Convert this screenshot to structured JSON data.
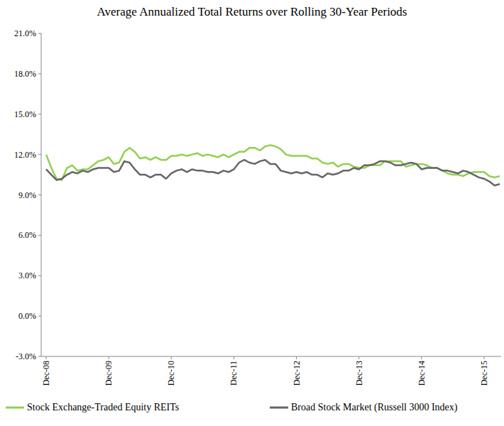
{
  "chart_data": {
    "type": "line",
    "title": "Average Annualized Total Returns over Rolling 30-Year Periods",
    "categories": [
      "Dec-08",
      null,
      null,
      null,
      null,
      null,
      null,
      null,
      null,
      null,
      null,
      null,
      "Dec-09",
      null,
      null,
      null,
      null,
      null,
      null,
      null,
      null,
      null,
      null,
      null,
      "Dec-10",
      null,
      null,
      null,
      null,
      null,
      null,
      null,
      null,
      null,
      null,
      null,
      "Dec-11",
      null,
      null,
      null,
      null,
      null,
      null,
      null,
      null,
      null,
      null,
      null,
      "Dec-12",
      null,
      null,
      null,
      null,
      null,
      null,
      null,
      null,
      null,
      null,
      null,
      "Dec-13",
      null,
      null,
      null,
      null,
      null,
      null,
      null,
      null,
      null,
      null,
      null,
      "Dec-14",
      null,
      null,
      null,
      null,
      null,
      null,
      null,
      null,
      null,
      null,
      null,
      "Dec-15",
      null,
      null,
      null
    ],
    "series": [
      {
        "name": "Stock Exchange-Traded Equity REITs",
        "color": "#92d050",
        "values": [
          12.0,
          11.0,
          10.2,
          10.1,
          11.0,
          11.2,
          10.8,
          10.9,
          10.9,
          11.2,
          11.5,
          11.6,
          11.8,
          11.3,
          11.4,
          12.2,
          12.5,
          12.2,
          11.7,
          11.8,
          11.6,
          11.8,
          11.6,
          11.6,
          11.9,
          11.9,
          12.0,
          11.9,
          12.0,
          12.1,
          11.9,
          12.0,
          11.9,
          11.8,
          12.0,
          11.8,
          12.0,
          12.2,
          12.2,
          12.5,
          12.5,
          12.3,
          12.6,
          12.7,
          12.6,
          12.4,
          12.0,
          11.9,
          11.9,
          11.9,
          11.9,
          11.7,
          11.7,
          11.4,
          11.3,
          11.4,
          11.1,
          11.3,
          11.3,
          11.1,
          11.0,
          11.0,
          11.2,
          11.2,
          11.2,
          11.5,
          11.5,
          11.5,
          11.5,
          11.1,
          11.2,
          11.3,
          11.3,
          11.2,
          11.0,
          11.0,
          10.8,
          10.6,
          10.5,
          10.5,
          10.4,
          10.6,
          10.7,
          10.7,
          10.7,
          10.4,
          10.3,
          10.4
        ]
      },
      {
        "name": "Broad Stock Market (Russell 3000 Index)",
        "color": "#666666",
        "values": [
          10.9,
          10.5,
          10.1,
          10.2,
          10.5,
          10.7,
          10.6,
          10.8,
          10.7,
          10.9,
          11.0,
          11.0,
          11.0,
          10.7,
          10.8,
          11.5,
          11.4,
          10.9,
          10.5,
          10.5,
          10.3,
          10.5,
          10.5,
          10.2,
          10.6,
          10.8,
          10.9,
          10.7,
          10.9,
          10.8,
          10.8,
          10.7,
          10.7,
          10.6,
          10.8,
          10.7,
          10.9,
          11.4,
          11.6,
          11.4,
          11.3,
          11.5,
          11.6,
          11.3,
          11.3,
          10.8,
          10.7,
          10.6,
          10.7,
          10.6,
          10.7,
          10.5,
          10.5,
          10.3,
          10.6,
          10.5,
          10.6,
          10.8,
          10.8,
          11.0,
          10.9,
          11.2,
          11.2,
          11.3,
          11.5,
          11.5,
          11.4,
          11.2,
          11.2,
          11.3,
          11.4,
          11.3,
          10.9,
          11.0,
          11.0,
          11.0,
          10.8,
          10.8,
          10.7,
          10.6,
          10.8,
          10.7,
          10.5,
          10.3,
          10.2,
          10.0,
          9.7,
          9.8
        ]
      }
    ],
    "ylim": [
      -3,
      21
    ],
    "yticks": [
      {
        "value": -3,
        "label": "-3.0%"
      },
      {
        "value": 0,
        "label": "0.0%"
      },
      {
        "value": 3,
        "label": "3.0%"
      },
      {
        "value": 6,
        "label": "6.0%"
      },
      {
        "value": 9,
        "label": "9.0%"
      },
      {
        "value": 12,
        "label": "12.0%"
      },
      {
        "value": 15,
        "label": "15.0%"
      },
      {
        "value": 18,
        "label": "18.0%"
      },
      {
        "value": 21,
        "label": "21.0%"
      }
    ],
    "grid": false,
    "legend": "bottom"
  }
}
